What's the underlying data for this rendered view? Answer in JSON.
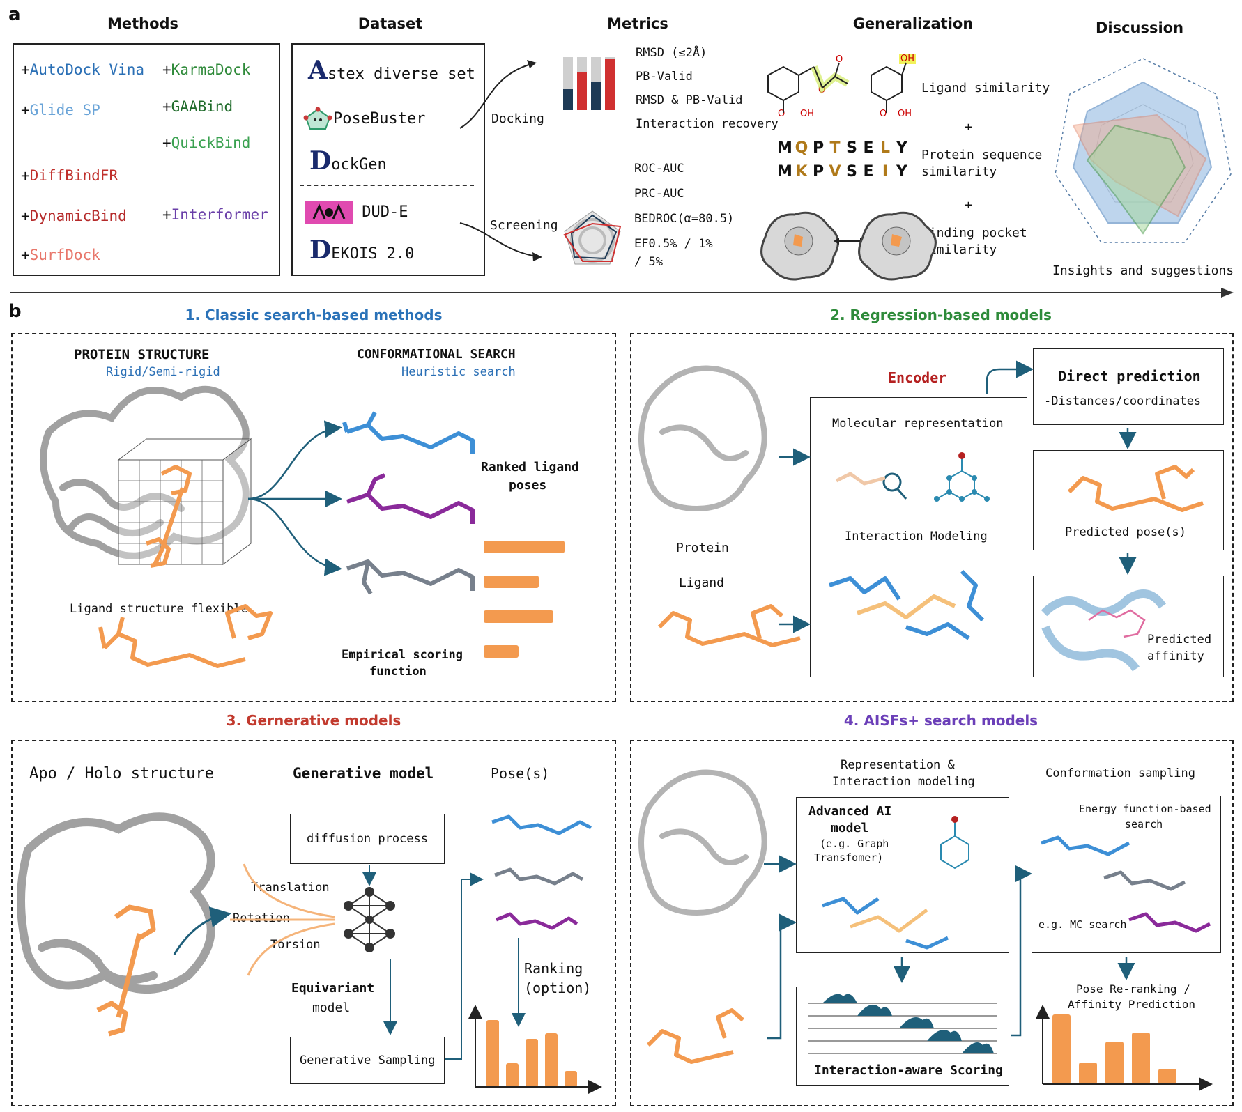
{
  "panel_labels": {
    "a": "a",
    "b": "b"
  },
  "section_a": {
    "headers": {
      "methods": "Methods",
      "dataset": "Dataset",
      "metrics": "Metrics",
      "generalization": "Generalization",
      "discussion": "Discussion"
    },
    "methods": [
      {
        "label": "AutoDock Vina",
        "color": "#2a6fb5"
      },
      {
        "label": "Glide SP",
        "color": "#6aa4d8"
      },
      {
        "label": "DiffBindFR",
        "color": "#c0302c"
      },
      {
        "label": "DynamicBind",
        "color": "#b52a2a"
      },
      {
        "label": "SurfDock",
        "color": "#e8776b"
      },
      {
        "label": "KarmaDock",
        "color": "#2f8a3a"
      },
      {
        "label": "GAABind",
        "color": "#1f6b2a"
      },
      {
        "label": "QuickBind",
        "color": "#3aa150"
      },
      {
        "label": "Interformer",
        "color": "#6a3fa8"
      }
    ],
    "datasets": {
      "astex": {
        "initial": "A",
        "rest": "stex diverse set"
      },
      "posebuster": "PoseBuster",
      "dockgen": {
        "initial": "D",
        "rest": "ockGen"
      },
      "dude": "DUD-E",
      "dekois": {
        "initial": "D",
        "rest": "EKOIS 2.0"
      }
    },
    "tasks": {
      "docking": "Docking",
      "screening": "Screening"
    },
    "docking_metrics": [
      "RMSD (≤2Å)",
      "PB-Valid",
      "RMSD & PB-Valid",
      "Interaction recovery"
    ],
    "screening_metrics": [
      "ROC-AUC",
      "PRC-AUC",
      "BEDROC(α=80.5)",
      "EF0.5% / 1%",
      "/ 5%"
    ],
    "generalization": {
      "ligand": "Ligand similarity",
      "protein_line1": "Protein sequence",
      "protein_line2": "similarity",
      "pocket_line1": "Binding pocket",
      "pocket_line2": "similarity",
      "plus": "+",
      "seq1": [
        "M",
        "Q",
        "P",
        "T",
        "S",
        "E",
        "L",
        "Y"
      ],
      "seq2": [
        "M",
        "K",
        "P",
        "V",
        "S",
        "E",
        "I",
        "Y"
      ],
      "atom_o": "O",
      "atom_oh": "OH"
    },
    "discussion_caption": "Insights and suggestions"
  },
  "section_b": {
    "p1": {
      "title": "1. Classic search-based methods",
      "protein_structure": "PROTEIN STRUCTURE",
      "protein_sub": "Rigid/Semi-rigid",
      "conf_search": "CONFORMATIONAL SEARCH",
      "conf_sub": "Heuristic search",
      "ranked_line1": "Ranked ligand",
      "ranked_line2": "poses",
      "ligand_flex": "Ligand structure flexible",
      "scoring_line1": "Empirical scoring",
      "scoring_line2": "function",
      "ranked_bar_fractions": [
        1.0,
        0.68,
        0.86,
        0.43
      ]
    },
    "p2": {
      "title": "2. Regression-based models",
      "encoder": "Encoder",
      "molecular_rep": "Molecular representation",
      "interaction_modeling": "Interaction Modeling",
      "protein": "Protein",
      "ligand": "Ligand",
      "direct_prediction": "Direct prediction",
      "distances": "-Distances/coordinates",
      "predicted_poses": "Predicted pose(s)",
      "predicted_affinity_line1": "Predicted",
      "predicted_affinity_line2": "affinity"
    },
    "p3": {
      "title": "3. Gernerative models",
      "apo_holo": "Apo / Holo structure",
      "generative_model": "Generative model",
      "poses": "Pose(s)",
      "diffusion": "diffusion process",
      "translation": "Translation",
      "rotation": "Rotation",
      "torsion": "Torsion",
      "equivariant_line1": "Equivariant",
      "equivariant_line2": "model",
      "generative_sampling": "Generative Sampling",
      "ranking_line1": "Ranking",
      "ranking_line2": "(option)",
      "ranking_bars": [
        1.0,
        0.35,
        0.72,
        0.8,
        0.24
      ]
    },
    "p4": {
      "title": "4. AISFs+ search models",
      "rep_line1": "Representation &",
      "rep_line2": "Interaction modeling",
      "conf_sampling": "Conformation sampling",
      "advanced_line1": "Advanced AI",
      "advanced_line2": "model",
      "eg_line1": "(e.g. Graph",
      "eg_line2": "Transfomer)",
      "energy_line1": "Energy function-based",
      "energy_line2": "search",
      "mc_search": "e.g. MC search",
      "interaction_scoring": "Interaction-aware Scoring",
      "rerank_line1": "Pose Re-ranking /",
      "rerank_line2": "Affinity Prediction",
      "rerank_bars": [
        1.0,
        0.31,
        0.61,
        0.74,
        0.22
      ]
    }
  },
  "colors": {
    "orange": "#f39a4f",
    "blue_ligand": "#3d8fd6",
    "purple_ligand": "#8a2a9a",
    "gray_ligand": "#77808c",
    "teal": "#1f5f7a",
    "p1_title": "#2a72b8",
    "p2_title": "#2e8b3a",
    "p3_title": "#c23a2e",
    "p4_title": "#6b3fb8",
    "encoder": "#b52020"
  }
}
